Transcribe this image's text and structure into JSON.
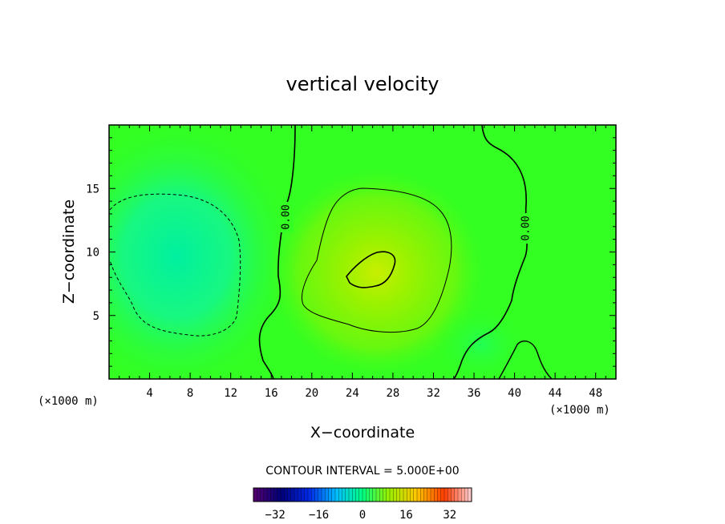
{
  "chart_data": {
    "type": "heatmap",
    "title": "vertical velocity",
    "xlabel": "X−coordinate",
    "ylabel": "Z−coordinate",
    "x_unit": "(×1000 m)",
    "y_unit": "(×1000 m)",
    "xlim": [
      0,
      50
    ],
    "ylim": [
      0,
      20
    ],
    "x_ticks": [
      4,
      8,
      12,
      16,
      20,
      24,
      28,
      32,
      36,
      40,
      44,
      48
    ],
    "y_ticks": [
      5,
      10,
      15
    ],
    "contour_interval_text": "CONTOUR INTERVAL = 5.000E+00",
    "contour_interval": 5,
    "contour_labels": [
      "0.00",
      "0.00"
    ],
    "colorbar": {
      "min": -40,
      "max": 40,
      "ticks": [
        -32,
        -16,
        0,
        16,
        32
      ],
      "tick_labels": [
        "−32",
        "−16",
        "0",
        "16",
        "32"
      ]
    },
    "features": [
      {
        "name": "downdraft",
        "x": 7,
        "z": 9.5,
        "value": -7
      },
      {
        "name": "updraft",
        "x": 26,
        "z": 8.5,
        "value": 13
      },
      {
        "name": "weak-down",
        "x": 37,
        "z": 3,
        "value": -2
      }
    ],
    "colors": {
      "background_field": "#33ff22",
      "frame": "#000000"
    }
  }
}
